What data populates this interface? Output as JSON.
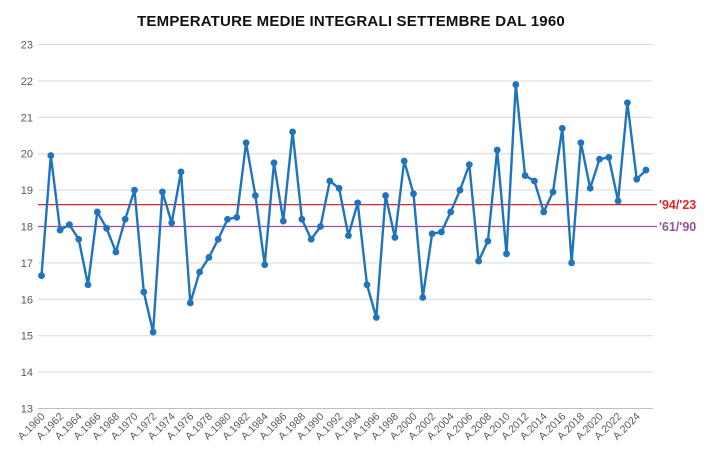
{
  "chart_data": {
    "type": "line",
    "title": "TEMPERATURE MEDIE INTEGRALI SETTEMBRE DAL 1960",
    "xlabel": "",
    "ylabel": "",
    "ylim": [
      13,
      23
    ],
    "y_ticks": [
      13,
      14,
      15,
      16,
      17,
      18,
      19,
      20,
      21,
      22,
      23
    ],
    "grid": true,
    "legend": "none",
    "series_color": "#1f74bd",
    "axis_text_color": "#595959",
    "gridline_color": "#d9d9d9",
    "axis_line_color": "#bfbfbf",
    "x_tick_labels": [
      "A.1960",
      "A.1962",
      "A.1964",
      "A.1966",
      "A.1968",
      "A.1970",
      "A.1972",
      "A.1974",
      "A.1976",
      "A.1978",
      "A.1980",
      "A.1982",
      "A.1984",
      "A.1986",
      "A.1988",
      "A.1990",
      "A.1992",
      "A.1994",
      "A.1996",
      "A.1998",
      "A.2000",
      "A.2002",
      "A.2004",
      "A.2006",
      "A.2008",
      "A.2010",
      "A.2012",
      "A.2014",
      "A.2016",
      "A.2018",
      "A.2020",
      "A.2022",
      "A.2024"
    ],
    "years": [
      1960,
      1961,
      1962,
      1963,
      1964,
      1965,
      1966,
      1967,
      1968,
      1969,
      1970,
      1971,
      1972,
      1973,
      1974,
      1975,
      1976,
      1977,
      1978,
      1979,
      1980,
      1981,
      1982,
      1983,
      1984,
      1985,
      1986,
      1987,
      1988,
      1989,
      1990,
      1991,
      1992,
      1993,
      1994,
      1995,
      1996,
      1997,
      1998,
      1999,
      2000,
      2001,
      2002,
      2003,
      2004,
      2005,
      2006,
      2007,
      2008,
      2009,
      2010,
      2011,
      2012,
      2013,
      2014,
      2015,
      2016,
      2017,
      2018,
      2019,
      2020,
      2021,
      2022,
      2023,
      2024,
      2025
    ],
    "values": [
      16.65,
      19.95,
      17.9,
      18.05,
      17.65,
      16.4,
      18.4,
      17.95,
      17.3,
      18.2,
      19.0,
      16.2,
      15.1,
      18.95,
      18.1,
      19.5,
      15.9,
      16.75,
      17.15,
      17.65,
      18.2,
      18.25,
      20.3,
      18.85,
      16.95,
      19.75,
      18.15,
      20.6,
      18.2,
      17.65,
      18.0,
      19.25,
      19.05,
      17.75,
      18.65,
      16.4,
      15.5,
      18.85,
      17.7,
      19.8,
      18.9,
      16.05,
      17.8,
      17.85,
      18.4,
      19.0,
      19.7,
      17.05,
      17.6,
      20.1,
      17.25,
      21.9,
      19.4,
      19.25,
      18.4,
      18.95,
      20.7,
      17.0,
      20.3,
      19.05,
      19.85,
      19.9,
      18.7,
      21.4,
      19.3,
      19.55
    ],
    "reference_lines": [
      {
        "label": "'94/'23",
        "value": 18.6,
        "color": "#e0262c"
      },
      {
        "label": "'61/'90",
        "value": 18.0,
        "color": "#9651a3"
      }
    ]
  }
}
